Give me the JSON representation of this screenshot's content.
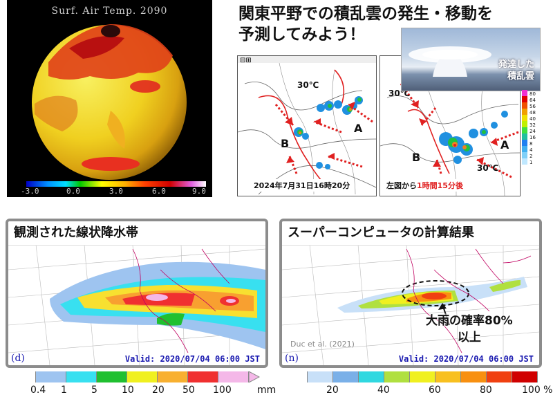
{
  "globe": {
    "title": "Surf. Air Temp. 2090",
    "ticks": [
      "-3.0",
      "0.0",
      "3.0",
      "6.0",
      "9.0"
    ]
  },
  "top_title": {
    "line1": "関東平野での積乱雲の発生・移動を",
    "line2": "予測してみよう！"
  },
  "cloud_photo": {
    "label_line1": "発達した",
    "label_line2": "積乱雲"
  },
  "map_left": {
    "caption": "2024年7月31日16時20分",
    "temp": "30℃",
    "label_a": "A",
    "label_b": "B"
  },
  "map_right": {
    "caption_prefix": "左図から",
    "caption_highlight": "1時間15分後",
    "temp_top": "30℃",
    "temp_bottom": "30℃",
    "label_a": "A",
    "label_b": "B"
  },
  "radar_scale": [
    "80",
    "64",
    "56",
    "48",
    "40",
    "32",
    "24",
    "16",
    "8",
    "4",
    "2",
    "1"
  ],
  "panel_obs": {
    "title": "観測された線状降水帯",
    "label": "(d)",
    "valid": "Valid: 2020/07/04 06:00 JST"
  },
  "panel_sim": {
    "title": "スーパーコンピュータの計算結果",
    "label": "(n)",
    "valid": "Valid: 2020/07/04 06:00 JST",
    "credit": "Duc et al. (2021)",
    "annotation_line1": "大雨の確率80%",
    "annotation_line2": "以上"
  },
  "bar_left": {
    "colors": [
      "#ffffff",
      "#9ec4f0",
      "#38e0f0",
      "#20c030",
      "#f0f020",
      "#f8b030",
      "#f03030",
      "#f4b8e8"
    ],
    "ticks": [
      "0.4",
      "1",
      "5",
      "10",
      "20",
      "50",
      "100"
    ],
    "unit": "mm"
  },
  "bar_right": {
    "colors": [
      "#ffffff",
      "#c8e0f8",
      "#7ab0e8",
      "#30d8e0",
      "#b0e040",
      "#f0f020",
      "#f8c020",
      "#f89010",
      "#f04010",
      "#d00000"
    ],
    "ticks": [
      "20",
      "40",
      "60",
      "80",
      "100 %"
    ]
  }
}
